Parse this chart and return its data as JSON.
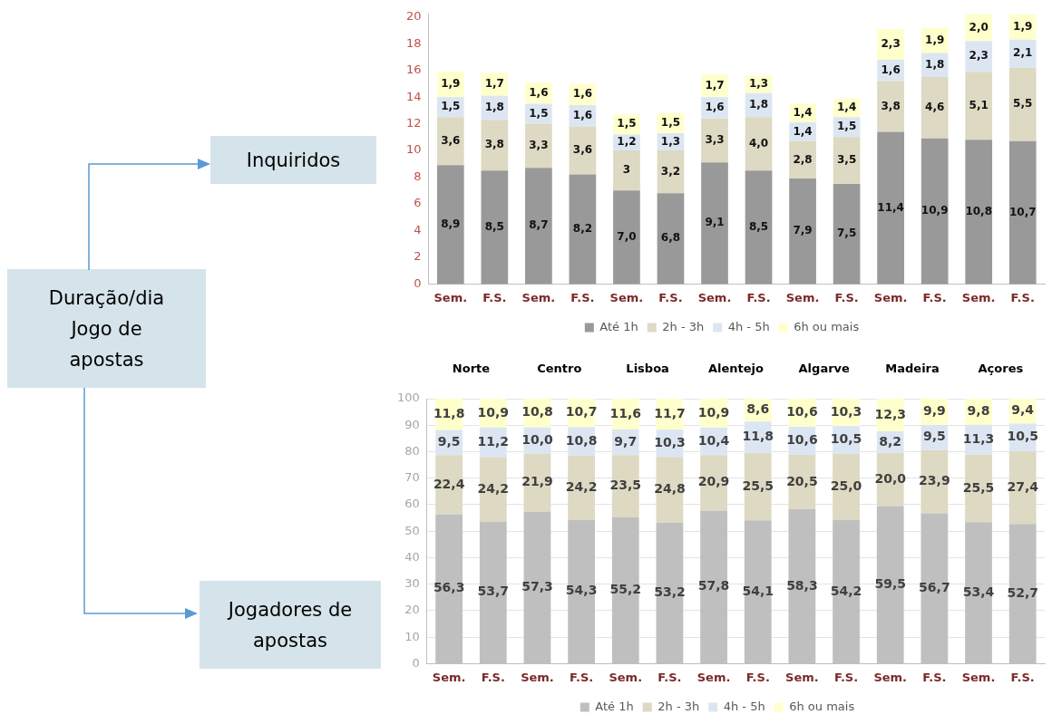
{
  "chart_data": [
    {
      "type": "other",
      "title": "Duração/dia Jogo de apostas"
    },
    {
      "type": "bar",
      "title": "Inquiridos",
      "stacked": true,
      "legend": "bottom",
      "grid": false,
      "categories": [
        "Sem.",
        "F.S.",
        "Sem.",
        "F.S.",
        "Sem.",
        "F.S.",
        "Sem.",
        "F.S.",
        "Sem.",
        "F.S.",
        "Sem.",
        "F.S.",
        "Sem.",
        "F.S."
      ],
      "ylim": [
        0,
        20.2
      ],
      "yticks": [
        0,
        2,
        4,
        6,
        8,
        10,
        12,
        14,
        16,
        18,
        20
      ],
      "series": [
        {
          "name": "Até 1h",
          "color": "#999999",
          "values": [
            8.9,
            8.5,
            8.7,
            8.2,
            7.0,
            6.8,
            9.1,
            8.5,
            7.9,
            7.5,
            11.4,
            10.9,
            10.8,
            10.7
          ],
          "value_labels": [
            "8,9",
            "8,5",
            "8,7",
            "8,2",
            "7,0",
            "6,8",
            "9,1",
            "8,5",
            "7,9",
            "7,5",
            "11,4",
            "10,9",
            "10,8",
            "10,7"
          ]
        },
        {
          "name": "2h - 3h",
          "color": "#ddd9c3",
          "values": [
            3.6,
            3.8,
            3.3,
            3.6,
            3,
            3.2,
            3.3,
            4.0,
            2.8,
            3.5,
            3.8,
            4.6,
            5.1,
            5.5
          ],
          "value_labels": [
            "3,6",
            "3,8",
            "3,3",
            "3,6",
            "3",
            "3,2",
            "3,3",
            "4,0",
            "2,8",
            "3,5",
            "3,8",
            "4,6",
            "5,1",
            "5,5"
          ]
        },
        {
          "name": "4h - 5h",
          "color": "#dce6f2",
          "values": [
            1.5,
            1.8,
            1.5,
            1.6,
            1.2,
            1.3,
            1.6,
            1.8,
            1.4,
            1.5,
            1.6,
            1.8,
            2.3,
            2.1
          ],
          "value_labels": [
            "1,5",
            "1,8",
            "1,5",
            "1,6",
            "1,2",
            "1,3",
            "1,6",
            "1,8",
            "1,4",
            "1,5",
            "1,6",
            "1,8",
            "2,3",
            "2,1"
          ]
        },
        {
          "name": "6h ou mais",
          "color": "#ffffcc",
          "values": [
            1.9,
            1.7,
            1.6,
            1.6,
            1.5,
            1.5,
            1.7,
            1.3,
            1.4,
            1.4,
            2.3,
            1.9,
            2.0,
            1.9
          ],
          "value_labels": [
            "1,9",
            "1,7",
            "1,6",
            "1,6",
            "1,5",
            "1,5",
            "1,7",
            "1,3",
            "1,4",
            "1,4",
            "2,3",
            "1,9",
            "2,0",
            "1,9"
          ]
        }
      ]
    },
    {
      "type": "bar",
      "title": "Jogadores de apostas",
      "stacked": true,
      "legend": "bottom",
      "grid": "y",
      "annotations": [
        "Norte",
        "Centro",
        "Lisboa",
        "Alentejo",
        "Algarve",
        "Madeira",
        "Açores"
      ],
      "categories": [
        "Sem.",
        "F.S.",
        "Sem.",
        "F.S.",
        "Sem.",
        "F.S.",
        "Sem.",
        "F.S.",
        "Sem.",
        "F.S.",
        "Sem.",
        "F.S.",
        "Sem.",
        "F.S."
      ],
      "ylim": [
        0,
        100
      ],
      "yticks": [
        0,
        10,
        20,
        30,
        40,
        50,
        60,
        70,
        80,
        90,
        100
      ],
      "series": [
        {
          "name": "Até 1h",
          "color": "#bfbfbf",
          "values": [
            56.3,
            53.7,
            57.3,
            54.3,
            55.2,
            53.2,
            57.8,
            54.1,
            58.3,
            54.2,
            59.5,
            56.7,
            53.4,
            52.7
          ],
          "value_labels": [
            "56,3",
            "53,7",
            "57,3",
            "54,3",
            "55,2",
            "53,2",
            "57,8",
            "54,1",
            "58,3",
            "54,2",
            "59,5",
            "56,7",
            "53,4",
            "52,7"
          ]
        },
        {
          "name": "2h - 3h",
          "color": "#ddd9c3",
          "values": [
            22.4,
            24.2,
            21.9,
            24.2,
            23.5,
            24.8,
            20.9,
            25.5,
            20.5,
            25.0,
            20.0,
            23.9,
            25.5,
            27.4
          ],
          "value_labels": [
            "22,4",
            "24,2",
            "21,9",
            "24,2",
            "23,5",
            "24,8",
            "20,9",
            "25,5",
            "20,5",
            "25,0",
            "20,0",
            "23,9",
            "25,5",
            "27,4"
          ]
        },
        {
          "name": "4h - 5h",
          "color": "#dce6f2",
          "values": [
            9.5,
            11.2,
            10.0,
            10.8,
            9.7,
            10.3,
            10.4,
            11.8,
            10.6,
            10.5,
            8.2,
            9.5,
            11.3,
            10.5
          ],
          "value_labels": [
            "9,5",
            "11,2",
            "10,0",
            "10,8",
            "9,7",
            "10,3",
            "10,4",
            "11,8",
            "10,6",
            "10,5",
            "8,2",
            "9,5",
            "11,3",
            "10,5"
          ]
        },
        {
          "name": "6h ou mais",
          "color": "#ffffcc",
          "values": [
            11.8,
            10.9,
            10.8,
            10.7,
            11.6,
            11.7,
            10.9,
            8.6,
            10.6,
            10.3,
            12.3,
            9.9,
            9.8,
            9.4
          ],
          "value_labels": [
            "11,8",
            "10,9",
            "10,8",
            "10,7",
            "11,6",
            "11,7",
            "10,9",
            "8,6",
            "10,6",
            "10,3",
            "12,3",
            "9,9",
            "9,8",
            "9,4"
          ]
        }
      ]
    }
  ]
}
